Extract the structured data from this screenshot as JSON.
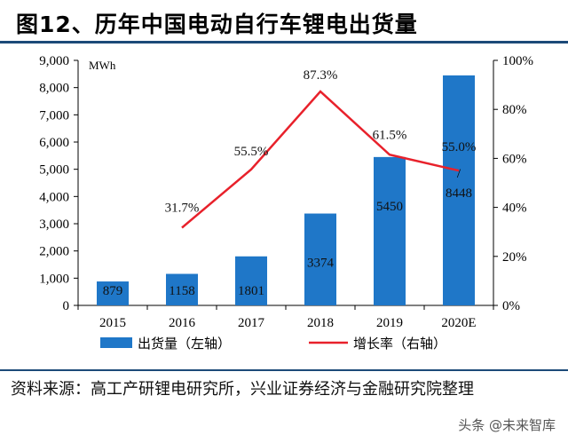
{
  "figure_title": "图12、历年中国电动自行车锂电出货量",
  "source_note": "资料来源：高工产研锂电研究所，兴业证券经济与金融研究院整理",
  "watermark": "头条 @未来智库",
  "colors": {
    "bar": "#1f77c8",
    "line": "#e8212b",
    "rule": "#1c4a78"
  },
  "chart_data": {
    "type": "bar+line",
    "categories": [
      "2015",
      "2016",
      "2017",
      "2018",
      "2019",
      "2020E"
    ],
    "left_axis": {
      "unit_label": "MWh",
      "ylim": [
        0,
        9000
      ],
      "ticks": [
        "0",
        "1,000",
        "2,000",
        "3,000",
        "4,000",
        "5,000",
        "6,000",
        "7,000",
        "8,000",
        "9,000"
      ]
    },
    "right_axis": {
      "ylim": [
        0,
        100
      ],
      "ticks": [
        "0%",
        "20%",
        "40%",
        "60%",
        "80%",
        "100%"
      ]
    },
    "series": [
      {
        "name": "出货量（左轴）",
        "type": "bar",
        "axis": "left",
        "values": [
          879,
          1158,
          1801,
          3374,
          5450,
          8448
        ],
        "labels": [
          "879",
          "1158",
          "1801",
          "3374",
          "5450",
          "8448"
        ]
      },
      {
        "name": "增长率（右轴）",
        "type": "line",
        "axis": "right",
        "values": [
          null,
          31.7,
          55.5,
          87.3,
          61.5,
          55.0
        ],
        "labels": [
          "",
          "31.7%",
          "55.5%",
          "87.3%",
          "61.5%",
          "55.0%"
        ]
      }
    ],
    "grid": false,
    "legend": "bottom"
  }
}
